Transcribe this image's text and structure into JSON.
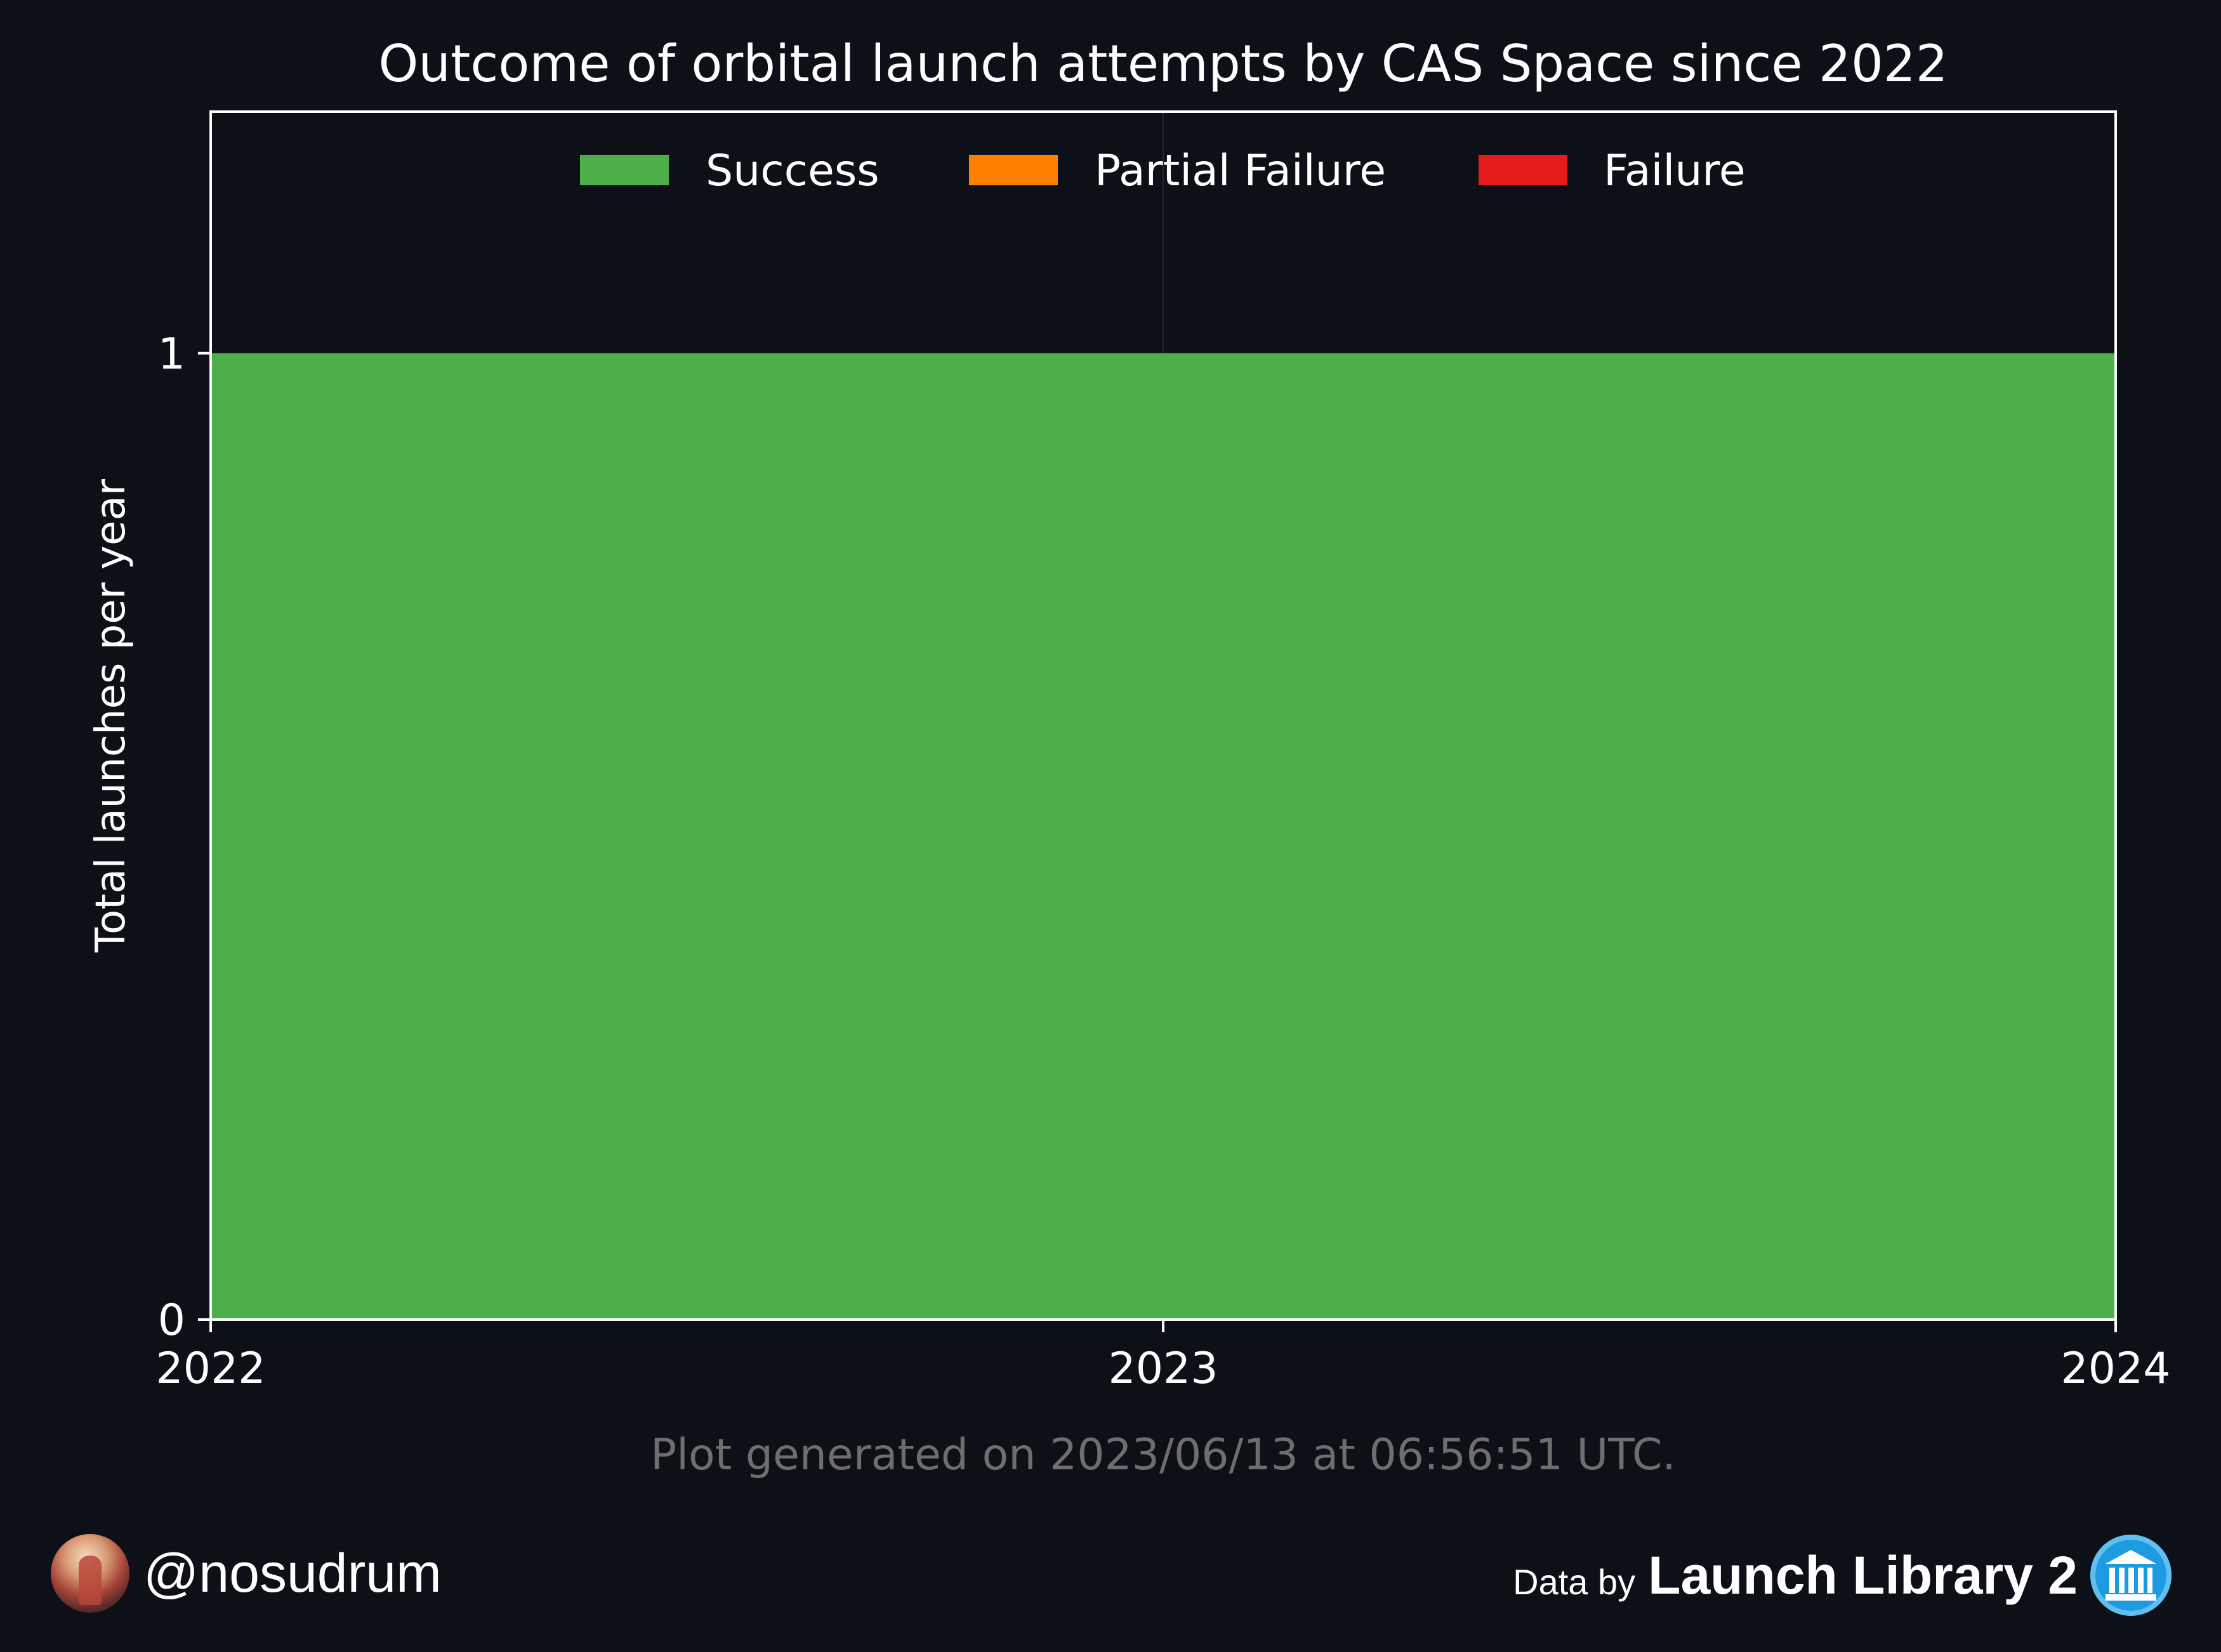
{
  "chart_data": {
    "type": "area",
    "title": "Outcome of orbital launch attempts by CAS Space since 2022",
    "ylabel": "Total launches per year",
    "xlabel": "",
    "x": [
      2022,
      2023,
      2024
    ],
    "x_ticks": [
      "2022",
      "2023",
      "2024"
    ],
    "y_ticks": [
      "0",
      "1"
    ],
    "xlim": [
      2022,
      2024
    ],
    "ylim": [
      0,
      1.25
    ],
    "stacked": true,
    "legend_position": "top-center",
    "grid": true,
    "series": [
      {
        "name": "Success",
        "color": "#4daf4a",
        "values": [
          1,
          1,
          1
        ]
      },
      {
        "name": "Partial Failure",
        "color": "#ff7f00",
        "values": [
          0,
          0,
          0
        ]
      },
      {
        "name": "Failure",
        "color": "#e41a1c",
        "values": [
          0,
          0,
          0
        ]
      }
    ]
  },
  "footnote": "Plot generated on 2023/06/13 at 06:56:51 UTC.",
  "footer": {
    "handle": "@nosudrum",
    "data_by": "Data by",
    "source": "Launch Library 2",
    "avatar_icon": "astronaut-avatar-icon",
    "source_icon": "library-building-icon"
  },
  "colors": {
    "background": "#0d1017",
    "axis": "#ffffff",
    "footnote": "#6e6e6e"
  }
}
